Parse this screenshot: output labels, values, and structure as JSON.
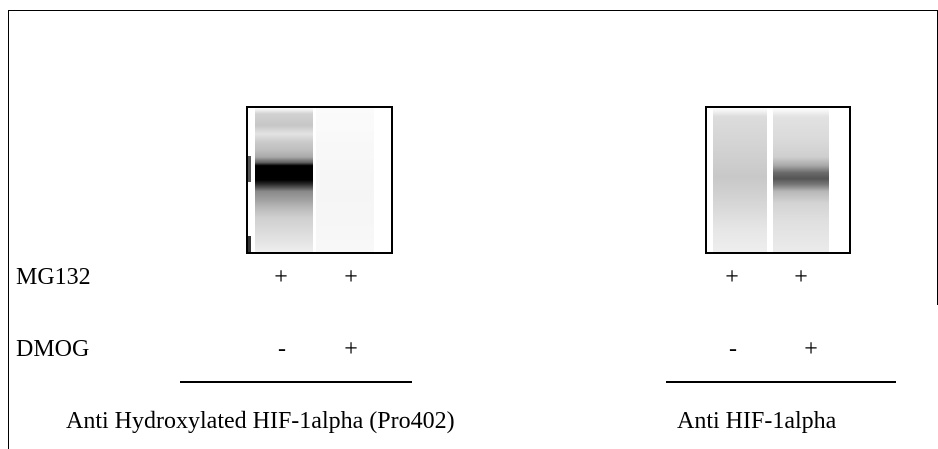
{
  "rows": {
    "mg132": {
      "label": "MG132",
      "blot1": [
        "+",
        "+"
      ],
      "blot2": [
        "+",
        "+"
      ]
    },
    "dmog": {
      "label": "DMOG",
      "blot1": [
        "-",
        "+"
      ],
      "blot2": [
        "-",
        "+"
      ]
    }
  },
  "antibodies": {
    "blot1": "Anti Hydroxylated HIF-1alpha (Pro402)",
    "blot2": "Anti HIF-1alpha"
  }
}
